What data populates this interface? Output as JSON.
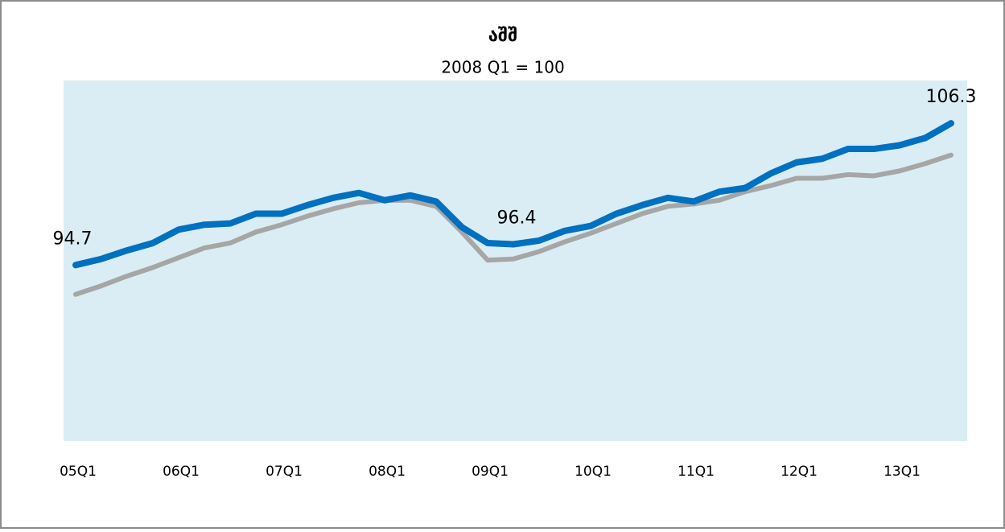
{
  "chart_data": {
    "type": "line",
    "title": "აშშ",
    "subtitle": "2008 Q1 = 100",
    "categories": [
      "05Q1",
      null,
      null,
      null,
      "06Q1",
      null,
      null,
      null,
      "07Q1",
      null,
      null,
      null,
      "08Q1",
      null,
      null,
      null,
      "09Q1",
      null,
      null,
      null,
      "10Q1",
      null,
      null,
      null,
      "11Q1",
      null,
      null,
      null,
      "12Q1",
      null,
      null,
      null,
      "13Q1",
      null,
      null
    ],
    "ylim": [
      80.3,
      109.8
    ],
    "background": "#daedf4",
    "series": [
      {
        "color": "#a6a6a6",
        "values": [
          92.3,
          93.0,
          93.8,
          94.5,
          95.3,
          96.1,
          96.5,
          97.4,
          98.0,
          98.7,
          99.3,
          99.8,
          100.0,
          100.0,
          99.5,
          97.4,
          95.1,
          95.2,
          95.8,
          96.6,
          97.3,
          98.1,
          98.9,
          99.5,
          99.7,
          100.0,
          100.7,
          101.2,
          101.8,
          101.8,
          102.1,
          102.0,
          102.4,
          103.0,
          103.7
        ]
      },
      {
        "color": "#0070c0",
        "values": [
          94.7,
          95.2,
          95.9,
          96.5,
          97.6,
          98.0,
          98.1,
          98.9,
          98.9,
          99.6,
          100.2,
          100.6,
          100.0,
          100.4,
          99.9,
          97.8,
          96.5,
          96.4,
          96.7,
          97.5,
          97.9,
          98.9,
          99.6,
          100.2,
          99.9,
          100.7,
          101.0,
          102.2,
          103.1,
          103.4,
          104.2,
          104.2,
          104.5,
          105.1,
          106.3
        ],
        "value_labels": [
          "94.7",
          null,
          null,
          null,
          null,
          null,
          null,
          null,
          null,
          null,
          null,
          null,
          null,
          null,
          null,
          null,
          null,
          "96.4",
          null,
          null,
          null,
          null,
          null,
          null,
          null,
          null,
          null,
          null,
          null,
          null,
          null,
          null,
          null,
          null,
          "106.3"
        ]
      }
    ]
  }
}
